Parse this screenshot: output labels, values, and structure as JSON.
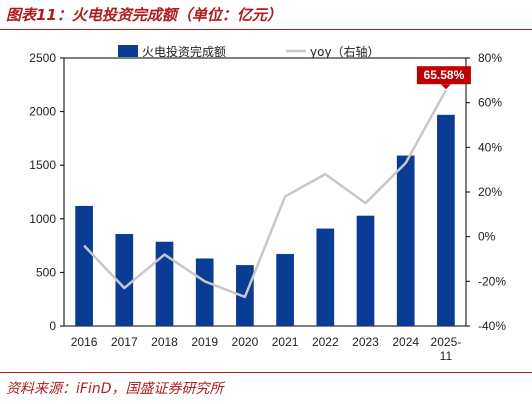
{
  "title": "图表11：火电投资完成额（单位：亿元）",
  "source": "资料来源：iFinD，国盛证券研究所",
  "colors": {
    "bar": "#0a3c96",
    "line": "#c8c8c8",
    "accent": "#c00000",
    "frame": "#b01c1c"
  },
  "chart_data": {
    "type": "bar",
    "categories": [
      "2016",
      "2017",
      "2018",
      "2019",
      "2020",
      "2021",
      "2022",
      "2023",
      "2024",
      "2025-11"
    ],
    "category_lines": [
      [
        "2016"
      ],
      [
        "2017"
      ],
      [
        "2018"
      ],
      [
        "2019"
      ],
      [
        "2020"
      ],
      [
        "2021"
      ],
      [
        "2022"
      ],
      [
        "2023"
      ],
      [
        "2024"
      ],
      [
        "2025-",
        "11"
      ]
    ],
    "series": [
      {
        "name": "火电投资完成额",
        "type": "bar",
        "axis": "left",
        "values": [
          1120,
          858,
          786,
          630,
          568,
          672,
          909,
          1029,
          1590,
          1970
        ]
      },
      {
        "name": "yoy（右轴）",
        "type": "line",
        "axis": "right",
        "values": [
          -4,
          -23,
          -8,
          -20,
          -27,
          18,
          28,
          15,
          33,
          65.58
        ]
      }
    ],
    "y_left": {
      "min": 0,
      "max": 2500,
      "ticks": [
        0,
        500,
        1000,
        1500,
        2000,
        2500
      ],
      "tick_labels": [
        "0",
        "500",
        "1000",
        "1500",
        "2000",
        "2500"
      ]
    },
    "y_right": {
      "min": -40,
      "max": 80,
      "ticks": [
        -40,
        -20,
        0,
        20,
        40,
        60,
        80
      ],
      "tick_labels": [
        "-40%",
        "-20%",
        "0%",
        "20%",
        "40%",
        "60%",
        "80%"
      ]
    },
    "annotations": [
      {
        "series": 1,
        "index": 9,
        "text": "65.58%"
      }
    ],
    "legend_position": "top",
    "grid": false
  }
}
